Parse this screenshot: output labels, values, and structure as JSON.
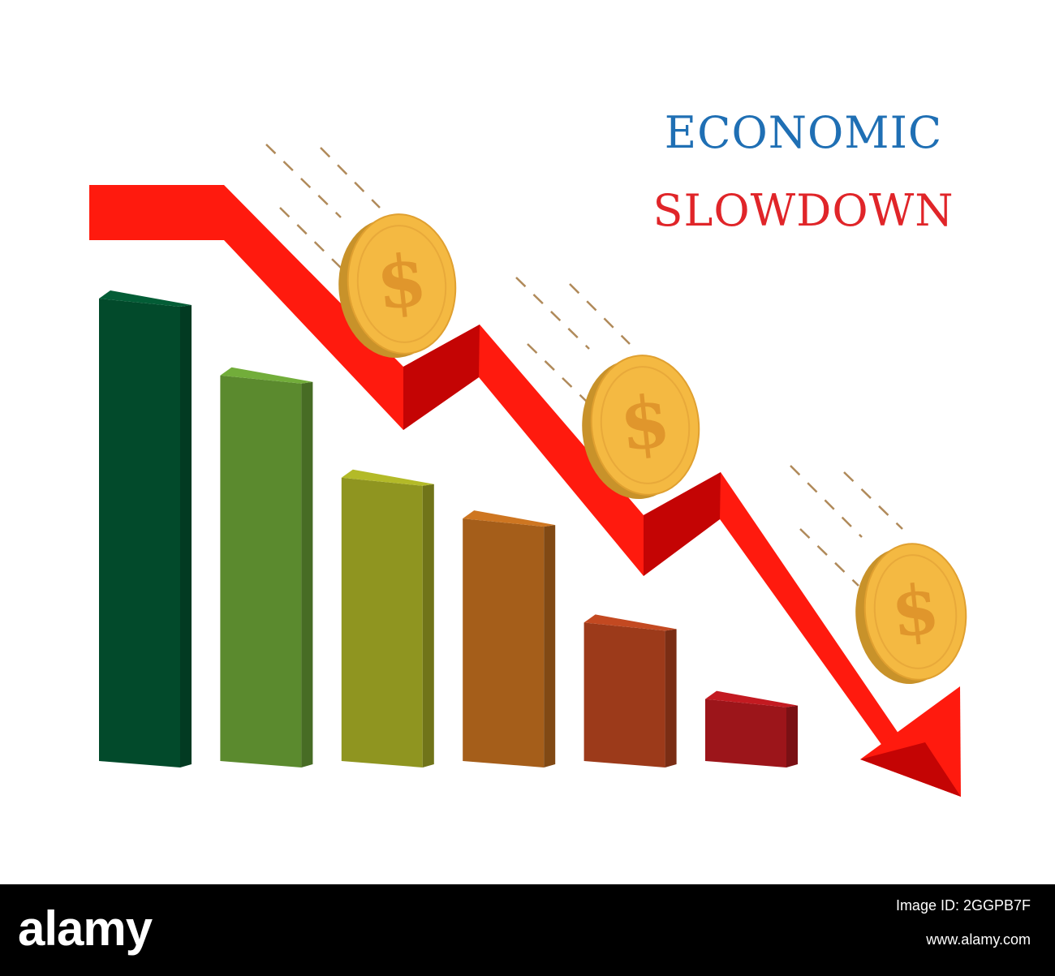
{
  "title": {
    "line1": "ECONOMIC",
    "line2": "SLOWDOWN"
  },
  "colors": {
    "title_line1": "#1f6fb4",
    "title_line2": "#e02529",
    "arrow": "#ff1a0e",
    "arrow_shadow": "#c40404",
    "coin": "#f4b942",
    "coin_edge": "#c8922a"
  },
  "coin_symbol": "$",
  "chart_data": {
    "type": "bar",
    "categories": [
      "",
      "",
      "",
      "",
      "",
      ""
    ],
    "values": [
      100,
      83.6,
      61.8,
      53.1,
      30.9,
      14.6
    ],
    "colors": [
      "#024a2b",
      "#5b8a2e",
      "#8f9520",
      "#a55e1a",
      "#9c3a1a",
      "#9c151a"
    ],
    "trend_arrow": {
      "direction": "down"
    }
  },
  "footer": {
    "brand": "alamy",
    "image_id": "Image ID: 2GGPB7F",
    "site": "www.alamy.com"
  }
}
